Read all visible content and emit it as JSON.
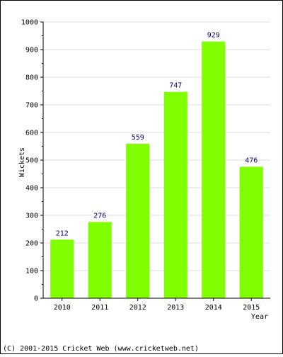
{
  "chart_data": {
    "type": "bar",
    "title": "",
    "xlabel": "Year",
    "ylabel": "Wickets",
    "categories": [
      "2010",
      "2011",
      "2012",
      "2013",
      "2014",
      "2015"
    ],
    "values": [
      212,
      276,
      559,
      747,
      929,
      476
    ],
    "ylim": [
      0,
      1000
    ],
    "yticks": [
      0,
      100,
      200,
      300,
      400,
      500,
      600,
      700,
      800,
      900,
      1000
    ],
    "grid": true,
    "legend": "none"
  },
  "colors": {
    "bar": "#7fff00",
    "value_label": "#000080",
    "grid": "#dddddd",
    "axis": "#000000"
  },
  "footer": {
    "copyright": "(C) 2001-2015 Cricket Web (www.cricketweb.net)"
  }
}
